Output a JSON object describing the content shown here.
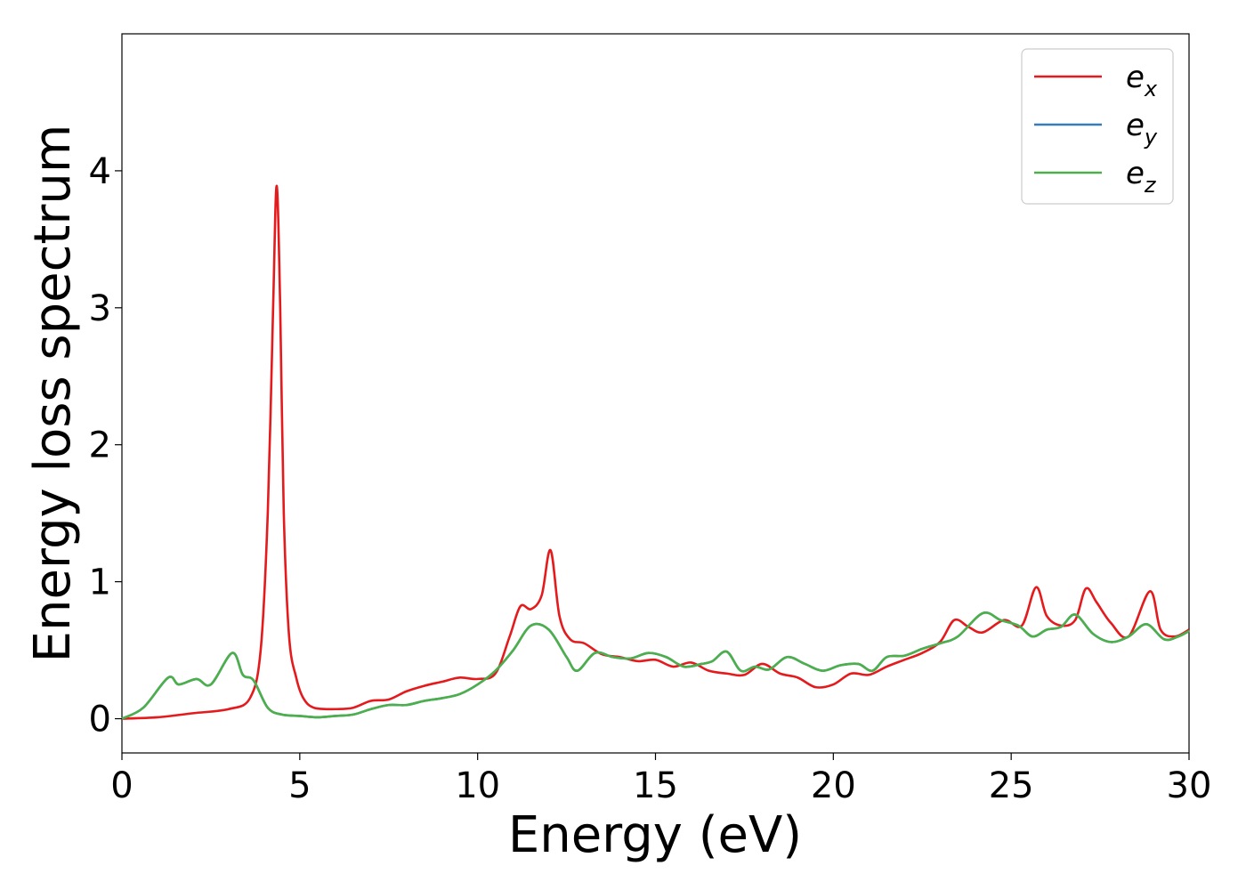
{
  "chart_data": {
    "type": "line",
    "xlabel": "Energy (eV)",
    "ylabel": "Energy loss spectrum",
    "xlim": [
      0,
      30
    ],
    "ylim": [
      -0.25,
      5.0
    ],
    "xticks": [
      0,
      5,
      10,
      15,
      20,
      25,
      30
    ],
    "yticks": [
      0,
      1,
      2,
      3,
      4
    ],
    "grid": false,
    "legend_position": "top-right",
    "series": [
      {
        "name": "e",
        "subscript": "x",
        "color": "#e41a1c",
        "x": [
          0,
          1,
          2,
          3,
          3.6,
          3.9,
          4.1,
          4.25,
          4.35,
          4.45,
          4.55,
          4.7,
          4.9,
          5.1,
          5.4,
          6,
          6.5,
          7,
          7.5,
          8,
          8.5,
          9,
          9.5,
          10,
          10.5,
          10.9,
          11.2,
          11.5,
          11.8,
          12.05,
          12.3,
          12.6,
          13,
          13.5,
          14,
          14.5,
          15,
          15.5,
          16,
          16.5,
          17,
          17.5,
          18,
          18.5,
          19,
          19.5,
          20,
          20.5,
          21,
          21.5,
          22,
          22.5,
          23,
          23.4,
          23.8,
          24.2,
          24.8,
          25.3,
          25.7,
          26,
          26.4,
          26.8,
          27.1,
          27.4,
          27.8,
          28.3,
          28.9,
          29.2,
          29.6,
          30
        ],
        "y": [
          0.0,
          0.01,
          0.04,
          0.07,
          0.15,
          0.5,
          1.5,
          3.0,
          3.89,
          3.0,
          1.5,
          0.6,
          0.3,
          0.15,
          0.08,
          0.07,
          0.08,
          0.13,
          0.14,
          0.2,
          0.24,
          0.27,
          0.3,
          0.29,
          0.33,
          0.6,
          0.82,
          0.8,
          0.9,
          1.23,
          0.75,
          0.58,
          0.55,
          0.47,
          0.45,
          0.42,
          0.43,
          0.38,
          0.41,
          0.35,
          0.33,
          0.32,
          0.4,
          0.33,
          0.3,
          0.23,
          0.25,
          0.33,
          0.32,
          0.38,
          0.43,
          0.48,
          0.56,
          0.72,
          0.67,
          0.63,
          0.72,
          0.68,
          0.96,
          0.75,
          0.68,
          0.72,
          0.95,
          0.85,
          0.7,
          0.6,
          0.93,
          0.65,
          0.6,
          0.65
        ]
      },
      {
        "name": "e",
        "subscript": "y",
        "color": "#377eb8",
        "x": [
          0,
          0.6,
          1.3,
          1.6,
          2.1,
          2.5,
          3.1,
          3.4,
          3.7,
          4.1,
          4.5,
          5,
          5.5,
          6,
          6.5,
          7,
          7.5,
          8,
          8.5,
          9,
          9.5,
          10,
          10.5,
          11,
          11.5,
          12,
          12.5,
          12.8,
          13.3,
          13.8,
          14.3,
          14.8,
          15.3,
          15.8,
          16.3,
          16.6,
          17,
          17.4,
          17.8,
          18.2,
          18.7,
          19.2,
          19.7,
          20.2,
          20.7,
          21.1,
          21.5,
          22,
          22.5,
          23,
          23.5,
          24.2,
          24.7,
          25.2,
          25.6,
          26,
          26.4,
          26.8,
          27.3,
          27.8,
          28.3,
          28.8,
          29.3,
          29.7,
          30
        ],
        "y": [
          0.0,
          0.08,
          0.3,
          0.25,
          0.29,
          0.25,
          0.48,
          0.32,
          0.28,
          0.08,
          0.03,
          0.02,
          0.01,
          0.02,
          0.03,
          0.07,
          0.1,
          0.1,
          0.13,
          0.15,
          0.18,
          0.25,
          0.35,
          0.5,
          0.68,
          0.65,
          0.45,
          0.35,
          0.48,
          0.45,
          0.44,
          0.48,
          0.45,
          0.38,
          0.4,
          0.42,
          0.49,
          0.35,
          0.38,
          0.36,
          0.45,
          0.4,
          0.35,
          0.39,
          0.4,
          0.35,
          0.45,
          0.46,
          0.51,
          0.55,
          0.6,
          0.77,
          0.72,
          0.68,
          0.6,
          0.65,
          0.67,
          0.76,
          0.62,
          0.56,
          0.6,
          0.69,
          0.58,
          0.6,
          0.64
        ]
      },
      {
        "name": "e",
        "subscript": "z",
        "color": "#4daf4a",
        "x": [
          0,
          0.6,
          1.3,
          1.6,
          2.1,
          2.5,
          3.1,
          3.4,
          3.7,
          4.1,
          4.5,
          5,
          5.5,
          6,
          6.5,
          7,
          7.5,
          8,
          8.5,
          9,
          9.5,
          10,
          10.5,
          11,
          11.5,
          12,
          12.5,
          12.8,
          13.3,
          13.8,
          14.3,
          14.8,
          15.3,
          15.8,
          16.3,
          16.6,
          17,
          17.4,
          17.8,
          18.2,
          18.7,
          19.2,
          19.7,
          20.2,
          20.7,
          21.1,
          21.5,
          22,
          22.5,
          23,
          23.5,
          24.2,
          24.7,
          25.2,
          25.6,
          26,
          26.4,
          26.8,
          27.3,
          27.8,
          28.3,
          28.8,
          29.3,
          29.7,
          30
        ],
        "y": [
          0.0,
          0.08,
          0.3,
          0.25,
          0.29,
          0.25,
          0.48,
          0.32,
          0.28,
          0.08,
          0.03,
          0.02,
          0.01,
          0.02,
          0.03,
          0.07,
          0.1,
          0.1,
          0.13,
          0.15,
          0.18,
          0.25,
          0.35,
          0.5,
          0.68,
          0.65,
          0.45,
          0.35,
          0.48,
          0.45,
          0.44,
          0.48,
          0.45,
          0.38,
          0.4,
          0.42,
          0.49,
          0.35,
          0.38,
          0.36,
          0.45,
          0.4,
          0.35,
          0.39,
          0.4,
          0.35,
          0.45,
          0.46,
          0.51,
          0.55,
          0.6,
          0.77,
          0.72,
          0.68,
          0.6,
          0.65,
          0.67,
          0.76,
          0.62,
          0.56,
          0.6,
          0.69,
          0.58,
          0.6,
          0.64
        ]
      }
    ]
  }
}
